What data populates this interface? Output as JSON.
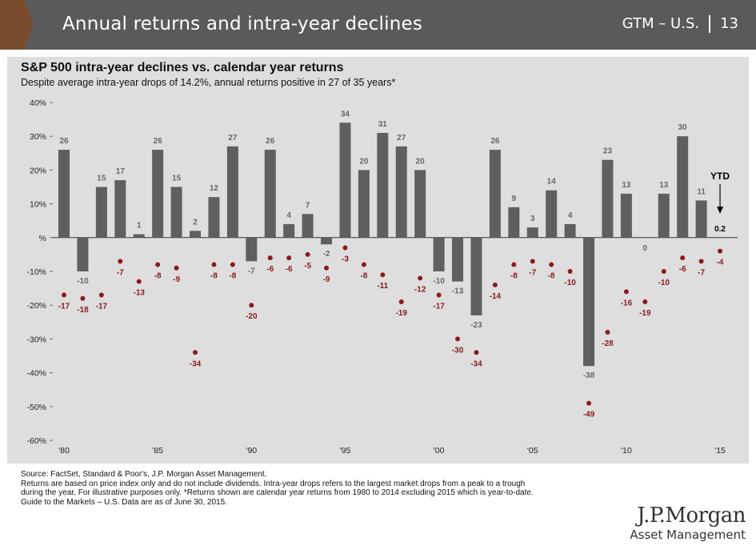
{
  "header": {
    "title": "Annual returns and intra-year declines",
    "guide": "GTM – U.S.",
    "page": "13",
    "accent": "#7a4a2c",
    "bg": "#5a5a5c"
  },
  "chart_data": {
    "type": "bar",
    "title": "S&P 500 intra-year declines vs. calendar year returns",
    "subtitle": "Despite average intra-year drops of 14.2%, annual returns positive in 27 of 35 years*",
    "ylim": [
      -60,
      40
    ],
    "yticks": [
      -60,
      -50,
      -40,
      -30,
      -20,
      -10,
      0,
      10,
      20,
      30,
      40
    ],
    "ytick_labels": [
      "-60%",
      "-50%",
      "-40%",
      "-30%",
      "-20%",
      "-10%",
      "%",
      "10%",
      "20%",
      "30%",
      "40%"
    ],
    "x": [
      1980,
      1981,
      1982,
      1983,
      1984,
      1985,
      1986,
      1987,
      1988,
      1989,
      1990,
      1991,
      1992,
      1993,
      1994,
      1995,
      1996,
      1997,
      1998,
      1999,
      2000,
      2001,
      2002,
      2003,
      2004,
      2005,
      2006,
      2007,
      2008,
      2009,
      2010,
      2011,
      2012,
      2013,
      2014,
      2015
    ],
    "xtick_labels": {
      "1980": "'80",
      "1985": "'85",
      "1990": "'90",
      "1995": "'95",
      "2000": "'00",
      "2005": "'05",
      "2010": "'10",
      "2015": "'15"
    },
    "series": [
      {
        "values": [
          26,
          -10,
          15,
          17,
          1,
          26,
          15,
          2,
          12,
          27,
          -7,
          26,
          4,
          7,
          -2,
          34,
          20,
          31,
          27,
          20,
          -10,
          -13,
          -23,
          26,
          9,
          3,
          14,
          4,
          -38,
          23,
          13,
          0,
          13,
          30,
          11,
          0.2
        ],
        "labels": [
          "26",
          "-10",
          "15",
          "17",
          "1",
          "26",
          "15",
          "2",
          "12",
          "27",
          "-7",
          "26",
          "4",
          "7",
          "-2",
          "34",
          "20",
          "31",
          "27",
          "20",
          "-10",
          "-13",
          "-23",
          "26",
          "9",
          "3",
          "14",
          "4",
          "-38",
          "23",
          "13",
          "0",
          "13",
          "30",
          "11",
          "0.2"
        ],
        "color": "#5f5f61"
      },
      {
        "values": [
          -17,
          -18,
          -17,
          -7,
          -13,
          -8,
          -9,
          -34,
          -8,
          -8,
          -20,
          -6,
          -6,
          -5,
          -9,
          -3,
          -8,
          -11,
          -19,
          -12,
          -17,
          -30,
          -34,
          -14,
          -8,
          -7,
          -8,
          -10,
          -49,
          -28,
          -16,
          -19,
          -10,
          -6,
          -7,
          -4
        ],
        "labels": [
          "-17",
          "-18",
          "-17",
          "-7",
          "-13",
          "-8",
          "-9",
          "-34",
          "-8",
          "-8",
          "-20",
          "-6",
          "-6",
          "-5",
          "-9",
          "-3",
          "-8",
          "-11",
          "-19",
          "-12",
          "-17",
          "-30",
          "-34",
          "-14",
          "-8",
          "-7",
          "-8",
          "-10",
          "-49",
          "-28",
          "-16",
          "-19",
          "-10",
          "-6",
          "-7",
          "-4"
        ],
        "color": "#8b1a1a"
      }
    ],
    "ytd_label": "YTD",
    "grid": false
  },
  "footnotes": [
    "Source: FactSet, Standard & Poor's, J.P. Morgan Asset Management.",
    "Returns are based on price index only and do not include dividends. Intra-year drops refers to the largest market drops from a peak to a trough",
    "during the year. For illustrative purposes only.  *Returns shown are calendar year returns from 1980 to 2014 excluding 2015 which is year-to-date.",
    "Guide to the Markets – U.S. Data are as of June 30, 2015."
  ],
  "logo": {
    "line1": "J.P.Morgan",
    "line2": "Asset Management"
  }
}
